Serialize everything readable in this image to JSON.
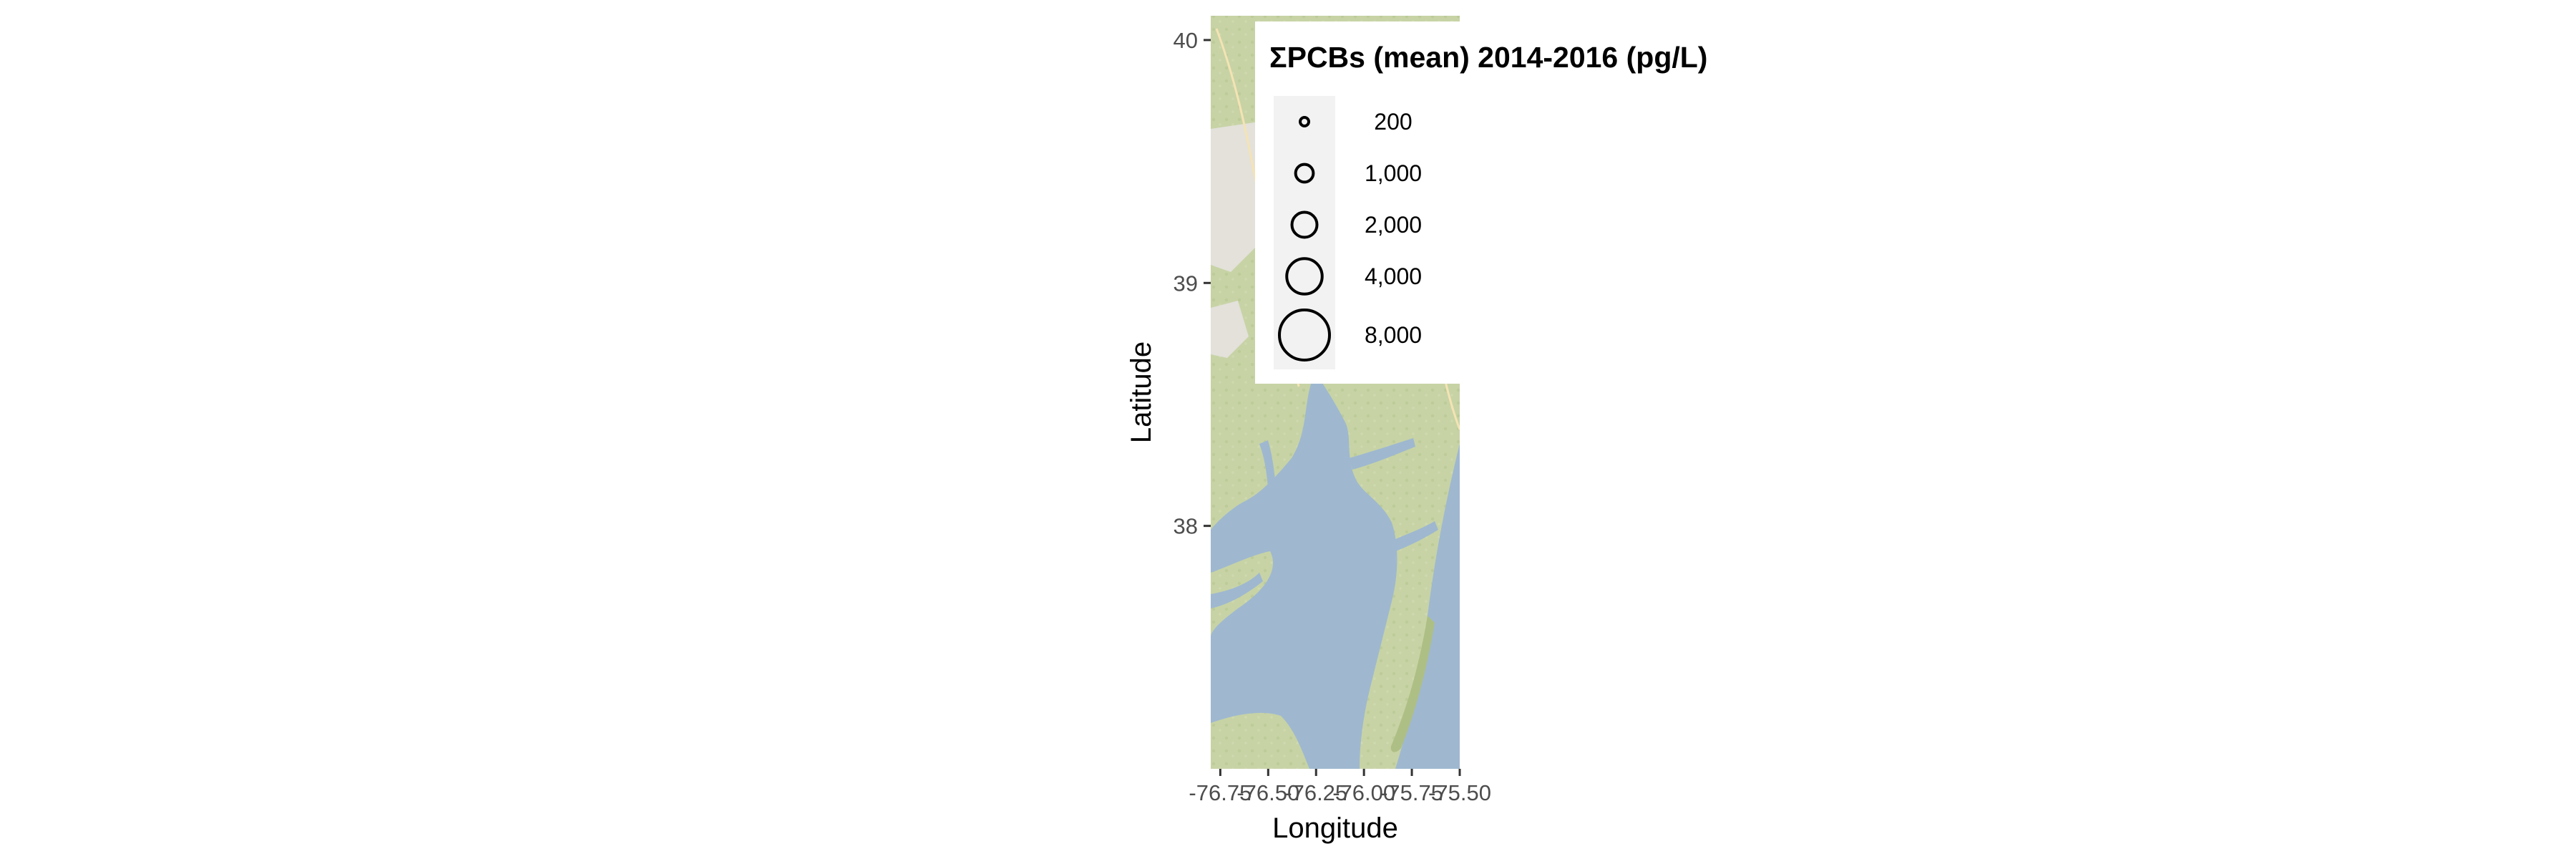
{
  "map": {
    "xlabel": "Longitude",
    "ylabel": "Latitude",
    "x_ticks": [
      "-76.75",
      "-76.50",
      "-76.25",
      "-76.00",
      "-75.75",
      "-75.50"
    ],
    "y_ticks": [
      "40",
      "39",
      "38"
    ],
    "basemap_colors": {
      "land": "#c7d3a5",
      "land_dark": "#aebf85",
      "water": "#9fb8d0",
      "urban": "#e3e1da",
      "road": "#f4e3b4"
    }
  },
  "legend": {
    "title": "ΣPCBs (mean) 2014-2016 (pg/L)",
    "entries": [
      {
        "label": "200",
        "value": 200
      },
      {
        "label": "1,000",
        "value": 1000
      },
      {
        "label": "2,000",
        "value": 2000
      },
      {
        "label": "4,000",
        "value": 4000
      },
      {
        "label": "8,000",
        "value": 8000
      }
    ],
    "circle_color": "#000000",
    "key_background": "#f2f2f2"
  },
  "chart_data": {
    "type": "scatter",
    "xlabel": "Longitude",
    "ylabel": "Latitude",
    "xlim": [
      -76.8,
      -75.5
    ],
    "ylim": [
      37.0,
      40.1
    ],
    "x_ticks": [
      -76.75,
      -76.5,
      -76.25,
      -76.0,
      -75.75,
      -75.5
    ],
    "y_ticks": [
      40,
      39,
      38
    ],
    "size_legend": {
      "title": "ΣPCBs (mean) 2014-2016 (pg/L)",
      "values": [
        200,
        1000,
        2000,
        4000,
        8000
      ],
      "placement": "top-right"
    },
    "basemap": "terrain"
  }
}
